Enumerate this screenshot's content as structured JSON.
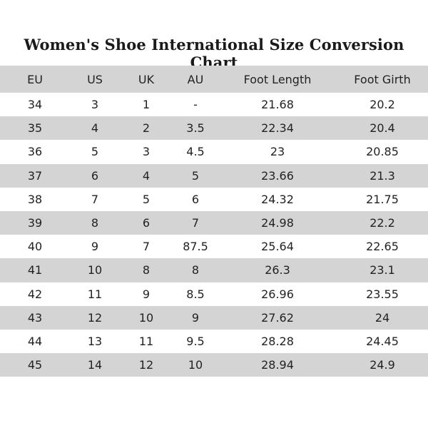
{
  "title": "Women's Shoe International Size Conversion Chart",
  "headers": [
    "EU",
    "US",
    "UK",
    "AU",
    "Foot Length",
    "Foot Girth"
  ],
  "rows": [
    [
      "34",
      "3",
      "1",
      "-",
      "21.68",
      "20.2"
    ],
    [
      "35",
      "4",
      "2",
      "3.5",
      "22.34",
      "20.4"
    ],
    [
      "36",
      "5",
      "3",
      "4.5",
      "23",
      "20.85"
    ],
    [
      "37",
      "6",
      "4",
      "5",
      "23.66",
      "21.3"
    ],
    [
      "38",
      "7",
      "5",
      "6",
      "24.32",
      "21.75"
    ],
    [
      "39",
      "8",
      "6",
      "7",
      "24.98",
      "22.2"
    ],
    [
      "40",
      "9",
      "7",
      "87.5",
      "25.64",
      "22.65"
    ],
    [
      "41",
      "10",
      "8",
      "8",
      "26.3",
      "23.1"
    ],
    [
      "42",
      "11",
      "9",
      "8.5",
      "26.96",
      "23.55"
    ],
    [
      "43",
      "12",
      "10",
      "9",
      "27.62",
      "24"
    ],
    [
      "44",
      "13",
      "11",
      "9.5",
      "28.28",
      "24.45"
    ],
    [
      "45",
      "14",
      "12",
      "10",
      "28.94",
      "24.9"
    ]
  ],
  "colors": {
    "row_shade": "#d4d4d4",
    "row_plain": "#ffffff",
    "text": "#222222"
  }
}
